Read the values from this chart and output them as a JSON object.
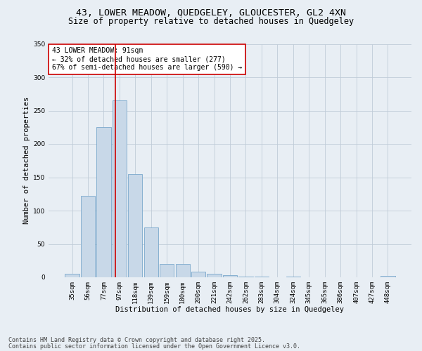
{
  "title1": "43, LOWER MEADOW, QUEDGELEY, GLOUCESTER, GL2 4XN",
  "title2": "Size of property relative to detached houses in Quedgeley",
  "xlabel": "Distribution of detached houses by size in Quedgeley",
  "ylabel": "Number of detached properties",
  "categories": [
    "35sqm",
    "56sqm",
    "77sqm",
    "97sqm",
    "118sqm",
    "139sqm",
    "159sqm",
    "180sqm",
    "200sqm",
    "221sqm",
    "242sqm",
    "262sqm",
    "283sqm",
    "304sqm",
    "324sqm",
    "345sqm",
    "365sqm",
    "386sqm",
    "407sqm",
    "427sqm",
    "448sqm"
  ],
  "values": [
    5,
    122,
    225,
    265,
    155,
    75,
    20,
    20,
    8,
    5,
    3,
    1,
    1,
    0,
    1,
    0,
    0,
    0,
    0,
    0,
    2
  ],
  "bar_color": "#c8d8e8",
  "bar_edge_color": "#7aa8cc",
  "vline_x": 2.72,
  "vline_color": "#cc0000",
  "annotation_text": "43 LOWER MEADOW: 91sqm\n← 32% of detached houses are smaller (277)\n67% of semi-detached houses are larger (590) →",
  "annotation_box_facecolor": "#ffffff",
  "annotation_box_edge": "#cc0000",
  "ylim": [
    0,
    350
  ],
  "yticks": [
    0,
    50,
    100,
    150,
    200,
    250,
    300,
    350
  ],
  "grid_color": "#c0ccd8",
  "background_color": "#e8eef4",
  "footer1": "Contains HM Land Registry data © Crown copyright and database right 2025.",
  "footer2": "Contains public sector information licensed under the Open Government Licence v3.0.",
  "title_fontsize": 9.5,
  "subtitle_fontsize": 8.5,
  "axis_label_fontsize": 7.5,
  "tick_fontsize": 6.5,
  "annot_fontsize": 7,
  "footer_fontsize": 6
}
